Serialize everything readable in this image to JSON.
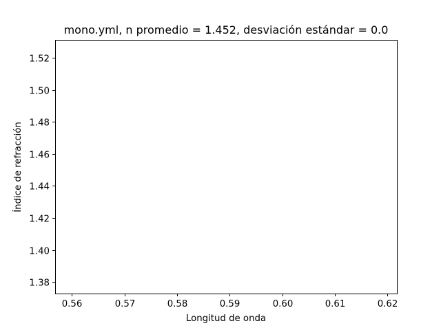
{
  "chart_data": {
    "type": "line",
    "title": "mono.yml, n promedio = 1.452, desviación estándar = 0.0",
    "xlabel": "Longitud de onda",
    "ylabel": "Índice de refracción",
    "xlim": [
      0.5568,
      0.6218
    ],
    "ylim": [
      1.3728,
      1.5312
    ],
    "xticks": [
      0.56,
      0.57,
      0.58,
      0.59,
      0.6,
      0.61,
      0.62
    ],
    "xtick_labels": [
      "0.56",
      "0.57",
      "0.58",
      "0.59",
      "0.60",
      "0.61",
      "0.62"
    ],
    "yticks": [
      1.38,
      1.4,
      1.42,
      1.44,
      1.46,
      1.48,
      1.5,
      1.52
    ],
    "ytick_labels": [
      "1.38",
      "1.40",
      "1.42",
      "1.44",
      "1.46",
      "1.48",
      "1.50",
      "1.52"
    ],
    "series": [],
    "grid": false,
    "legend": "none",
    "colors": {
      "axes": "#000000",
      "background": "#ffffff"
    }
  }
}
